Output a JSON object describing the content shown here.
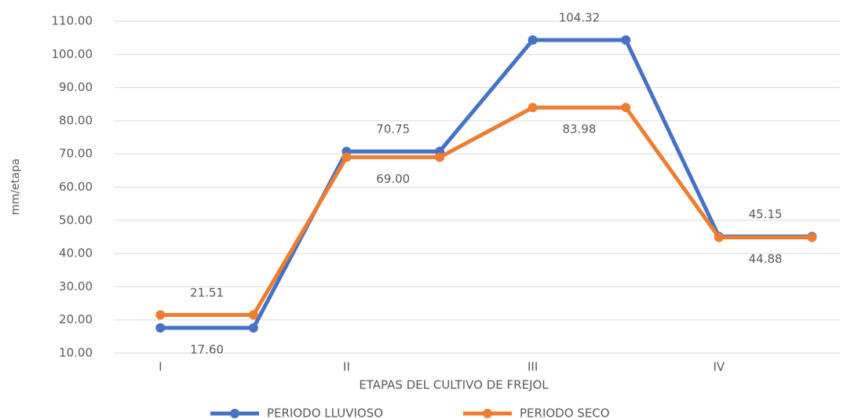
{
  "chart_data": {
    "type": "line",
    "x_label": "ETAPAS DEL CULTIVO DE FREJOL",
    "y_label": "mm/etapa",
    "x": [
      1,
      1.5,
      2,
      2.5,
      3,
      3.5,
      4,
      4.5
    ],
    "xlim": [
      0.75,
      4.65
    ],
    "xticks": [
      {
        "value": 1,
        "label": "I"
      },
      {
        "value": 2,
        "label": "II"
      },
      {
        "value": 3,
        "label": "III"
      },
      {
        "value": 4,
        "label": "IV"
      }
    ],
    "ylim": [
      10,
      110
    ],
    "yticks": [
      {
        "value": 10,
        "label": "10.00"
      },
      {
        "value": 20,
        "label": "20.00"
      },
      {
        "value": 30,
        "label": "30.00"
      },
      {
        "value": 40,
        "label": "40.00"
      },
      {
        "value": 50,
        "label": "50.00"
      },
      {
        "value": 60,
        "label": "60.00"
      },
      {
        "value": 70,
        "label": "70.00"
      },
      {
        "value": 80,
        "label": "80.00"
      },
      {
        "value": 90,
        "label": "90.00"
      },
      {
        "value": 100,
        "label": "100.00"
      },
      {
        "value": 110,
        "label": "110.00"
      }
    ],
    "grid": true,
    "legend": "bottom",
    "series": [
      {
        "name": "PERIODO LLUVIOSO",
        "color": "#4472c4",
        "values": [
          17.6,
          17.6,
          70.75,
          70.75,
          104.32,
          104.32,
          45.15,
          45.15
        ],
        "value_labels": [
          "17.60",
          null,
          "70.75",
          null,
          "104.32",
          null,
          "45.15",
          null
        ]
      },
      {
        "name": "PERIODO SECO",
        "color": "#ed7d31",
        "values": [
          21.51,
          21.51,
          69,
          69,
          83.98,
          83.98,
          44.88,
          44.88
        ],
        "value_labels": [
          "21.51",
          null,
          "69.00",
          null,
          "83.98",
          null,
          "44.88",
          null
        ]
      }
    ]
  }
}
